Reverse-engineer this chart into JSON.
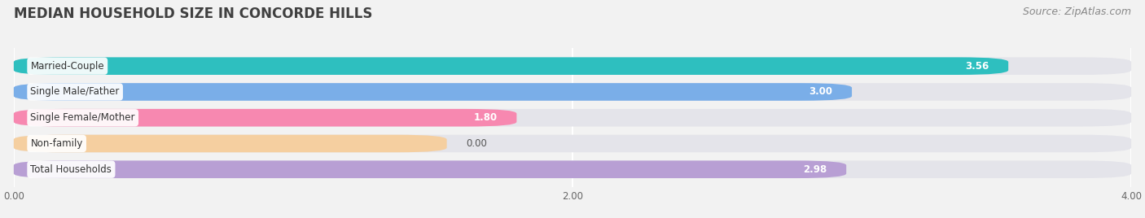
{
  "title": "MEDIAN HOUSEHOLD SIZE IN CONCORDE HILLS",
  "source": "Source: ZipAtlas.com",
  "categories": [
    "Married-Couple",
    "Single Male/Father",
    "Single Female/Mother",
    "Non-family",
    "Total Households"
  ],
  "values": [
    3.56,
    3.0,
    1.8,
    0.0,
    2.98
  ],
  "bar_colors": [
    "#2ebfbf",
    "#7aaee8",
    "#f788b0",
    "#f5cfa0",
    "#b89fd4"
  ],
  "xlim": [
    0,
    4.3
  ],
  "data_max": 4.0,
  "xticks": [
    0.0,
    2.0,
    4.0
  ],
  "background_color": "#f2f2f2",
  "bar_background": "#e4e4ea",
  "title_fontsize": 12,
  "source_fontsize": 9,
  "bar_height": 0.68,
  "nonfamily_bar_width": 1.55
}
